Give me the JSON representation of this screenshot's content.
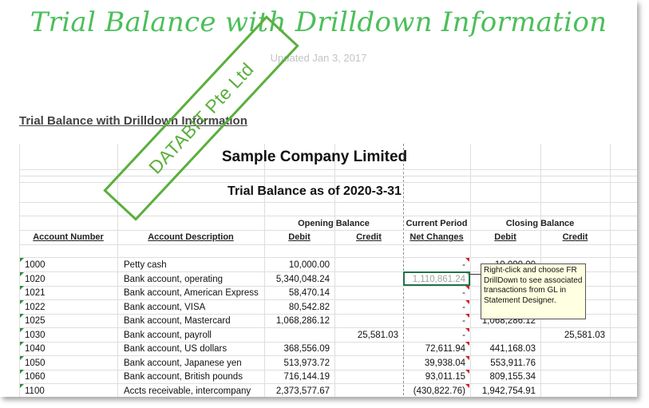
{
  "page": {
    "title": "Trial Balance with Drilldown Information",
    "updated": "Updated Jan 3, 2017",
    "section_link": "Trial Balance with Drilldown Information"
  },
  "sheet": {
    "company": "Sample Company Limited",
    "report_title": "Trial Balance as of 2020-3-31",
    "headers": {
      "opening_balance": "Opening Balance",
      "current_period": "Current Period",
      "closing_balance": "Closing Balance",
      "account_number": "Account Number",
      "account_description": "Account Description",
      "debit": "Debit",
      "credit": "Credit",
      "net_changes": "Net Changes",
      "closing_debit": "Debit",
      "closing_credit": "Credit"
    },
    "rows": [
      {
        "acct": "1000",
        "desc": "Petty cash",
        "open_debit": "10,000.00",
        "open_credit": "",
        "net": "-",
        "close_debit": "10,000.00",
        "close_credit": ""
      },
      {
        "acct": "1020",
        "desc": "Bank account, operating",
        "open_debit": "5,340,048.24",
        "open_credit": "",
        "net": "1,110,861.24",
        "close_debit": "",
        "close_credit": ""
      },
      {
        "acct": "1021",
        "desc": "Bank account, American Express",
        "open_debit": "58,470.14",
        "open_credit": "",
        "net": "-",
        "close_debit": "",
        "close_credit": ""
      },
      {
        "acct": "1022",
        "desc": "Bank account, VISA",
        "open_debit": "80,542.82",
        "open_credit": "",
        "net": "-",
        "close_debit": "",
        "close_credit": ""
      },
      {
        "acct": "1025",
        "desc": "Bank account, Mastercard",
        "open_debit": "1,068,286.12",
        "open_credit": "",
        "net": "-",
        "close_debit": "1,068,286.12",
        "close_credit": ""
      },
      {
        "acct": "1030",
        "desc": "Bank account, payroll",
        "open_debit": "",
        "open_credit": "25,581.03",
        "net": "-",
        "close_debit": "",
        "close_credit": "25,581.03"
      },
      {
        "acct": "1040",
        "desc": "Bank account, US dollars",
        "open_debit": "368,556.09",
        "open_credit": "",
        "net": "72,611.94",
        "close_debit": "441,168.03",
        "close_credit": ""
      },
      {
        "acct": "1050",
        "desc": "Bank account, Japanese yen",
        "open_debit": "513,973.72",
        "open_credit": "",
        "net": "39,938.04",
        "close_debit": "553,911.76",
        "close_credit": ""
      },
      {
        "acct": "1060",
        "desc": "Bank account, British pounds",
        "open_debit": "716,144.19",
        "open_credit": "",
        "net": "93,011.15",
        "close_debit": "809,155.34",
        "close_credit": ""
      },
      {
        "acct": "1100",
        "desc": "Accts receivable, intercompany",
        "open_debit": "2,373,577.67",
        "open_credit": "",
        "net": "(430,822.76)",
        "close_debit": "1,942,754.91",
        "close_credit": ""
      }
    ],
    "comment": "Right-click and choose FR DrillDown to see associated transactions from GL in Statement Designer."
  },
  "watermark": "DATABIT Pte Ltd",
  "colors": {
    "title_green": "#4cbf5a",
    "watermark_green": "#5aaf3c",
    "excel_selection": "#217346",
    "comment_bg": "#ffffe1"
  }
}
